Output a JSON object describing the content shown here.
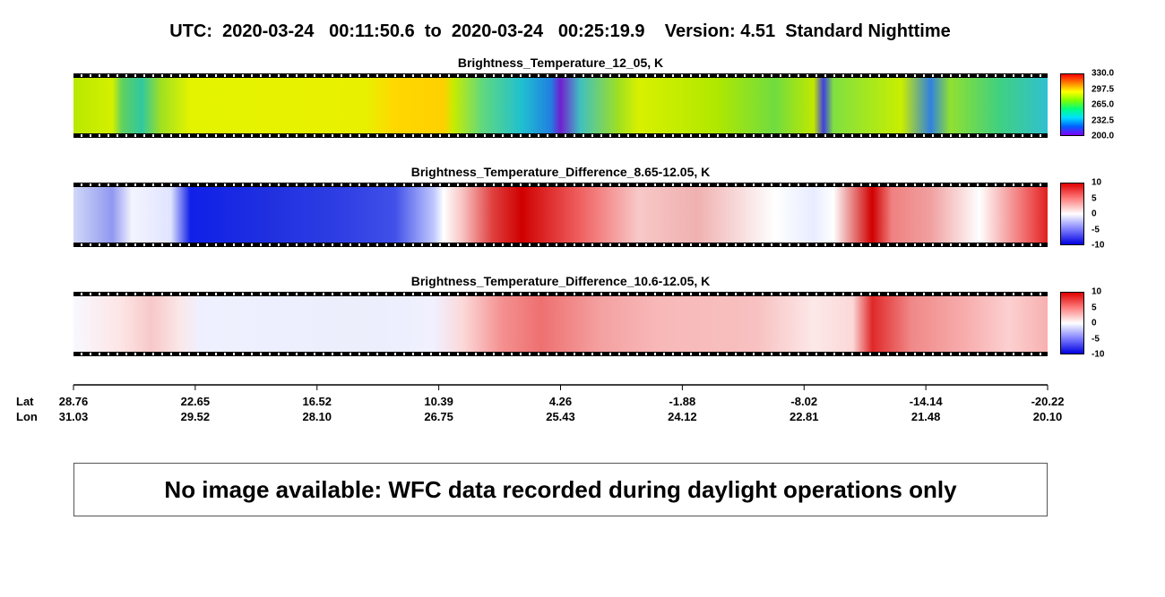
{
  "header": {
    "title": "UTC:  2020-03-24   00:11:50.6  to  2020-03-24   00:25:19.9    Version: 4.51  Standard Nighttime"
  },
  "panels": [
    {
      "title": "Brightness_Temperature_12_05, K",
      "colorbar": {
        "ticks": [
          "330.0",
          "297.5",
          "265.0",
          "232.5",
          "200.0"
        ]
      }
    },
    {
      "title": "Brightness_Temperature_Difference_8.65-12.05, K",
      "colorbar": {
        "ticks": [
          "10",
          "5",
          "0",
          "-5",
          "-10"
        ]
      }
    },
    {
      "title": "Brightness_Temperature_Difference_10.6-12.05, K",
      "colorbar": {
        "ticks": [
          "10",
          "5",
          "0",
          "-5",
          "-10"
        ]
      }
    }
  ],
  "axis": {
    "lat_label": "Lat",
    "lon_label": "Lon",
    "lat": [
      "28.76",
      "22.65",
      "16.52",
      "10.39",
      "4.26",
      "-1.88",
      "-8.02",
      "-14.14",
      "-20.22"
    ],
    "lon": [
      "31.03",
      "29.52",
      "28.10",
      "26.75",
      "25.43",
      "24.12",
      "22.81",
      "21.48",
      "20.10"
    ]
  },
  "message": "No image available: WFC data recorded during daylight operations only"
}
